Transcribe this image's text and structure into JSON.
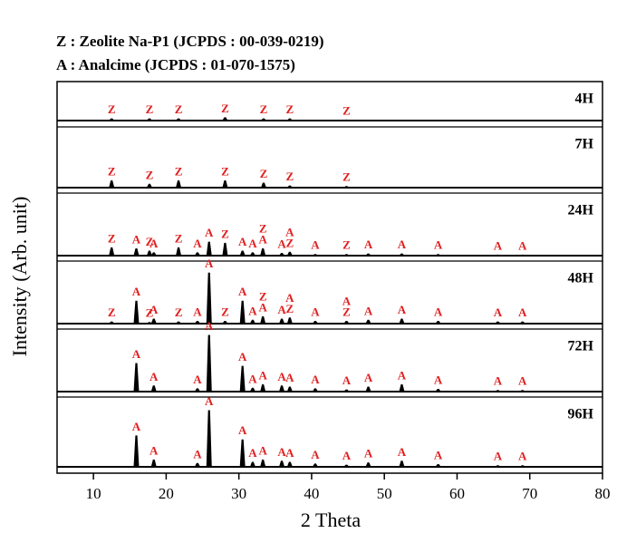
{
  "chart_data": {
    "type": "xrd-stack",
    "notes": [
      "Z : Zeolite Na-P1 (JCPDS : 00-039-0219)",
      "A : Analcime (JCPDS : 01-070-1575)"
    ],
    "x_label": "2 Theta",
    "y_label": "Intensity (Arb. unit)",
    "xlim": [
      5,
      80
    ],
    "xticks": [
      10,
      20,
      30,
      40,
      50,
      60,
      70,
      80
    ],
    "series": [
      {
        "name": "4H",
        "x": [
          12.5,
          17.7,
          21.7,
          28.1,
          33.4,
          37.0,
          44.8
        ],
        "values": [
          3,
          3,
          3,
          5,
          3,
          3,
          1
        ],
        "labels": [
          [
            "Z"
          ],
          [
            "Z"
          ],
          [
            "Z"
          ],
          [
            "Z"
          ],
          [
            "Z"
          ],
          [
            "Z"
          ],
          [
            "Z"
          ]
        ]
      },
      {
        "name": "7H",
        "x": [
          12.5,
          17.7,
          21.7,
          28.1,
          33.4,
          37.0,
          44.8
        ],
        "values": [
          12,
          6,
          12,
          12,
          8,
          3,
          2
        ],
        "labels": [
          [
            "Z"
          ],
          [
            "Z"
          ],
          [
            "Z"
          ],
          [
            "Z"
          ],
          [
            "Z"
          ],
          [
            "Z"
          ],
          [
            "Z"
          ]
        ]
      },
      {
        "name": "24H",
        "x": [
          12.5,
          15.9,
          17.7,
          18.3,
          21.7,
          24.3,
          25.9,
          28.1,
          30.5,
          31.9,
          33.3,
          35.9,
          37.0,
          40.5,
          44.8,
          47.8,
          52.4,
          57.4,
          65.6,
          69.0
        ],
        "values": [
          14,
          12,
          8,
          5,
          14,
          5,
          24,
          22,
          8,
          5,
          12,
          4,
          6,
          2,
          2,
          3,
          3,
          2,
          1,
          1
        ],
        "labels": [
          [
            "Z"
          ],
          [
            "A"
          ],
          [
            "Z"
          ],
          [
            "A"
          ],
          [
            "Z"
          ],
          [
            "A"
          ],
          [
            "A"
          ],
          [
            "Z"
          ],
          [
            "A"
          ],
          [
            "A"
          ],
          [
            "Z",
            "A"
          ],
          [
            "A"
          ],
          [
            "A",
            "Z"
          ],
          [
            "A"
          ],
          [
            "Z"
          ],
          [
            "A"
          ],
          [
            "A"
          ],
          [
            "A"
          ],
          [
            "A"
          ],
          [
            "A"
          ]
        ]
      },
      {
        "name": "48H",
        "x": [
          12.5,
          15.9,
          17.7,
          18.3,
          21.7,
          24.3,
          25.9,
          28.1,
          30.5,
          31.9,
          33.3,
          35.9,
          37.0,
          40.5,
          44.8,
          47.8,
          52.4,
          57.4,
          65.6,
          69.0
        ],
        "values": [
          3,
          40,
          2,
          8,
          3,
          4,
          90,
          4,
          40,
          6,
          12,
          8,
          10,
          4,
          4,
          6,
          8,
          4,
          3,
          3
        ],
        "labels": [
          [
            "Z"
          ],
          [
            "A"
          ],
          [
            "Z"
          ],
          [
            "A"
          ],
          [
            "Z"
          ],
          [
            "A"
          ],
          [
            "A"
          ],
          [
            "Z"
          ],
          [
            "A"
          ],
          [
            "A"
          ],
          [
            "Z",
            "A"
          ],
          [
            "A"
          ],
          [
            "A",
            "Z"
          ],
          [
            "A"
          ],
          [
            "A",
            "Z"
          ],
          [
            "A"
          ],
          [
            "A"
          ],
          [
            "A"
          ],
          [
            "A"
          ],
          [
            "A"
          ]
        ]
      },
      {
        "name": "72H",
        "x": [
          15.9,
          18.3,
          24.3,
          25.9,
          30.5,
          31.9,
          33.3,
          35.9,
          37.0,
          40.5,
          44.8,
          47.8,
          52.4,
          57.4,
          65.6,
          69.0
        ],
        "values": [
          50,
          10,
          5,
          100,
          45,
          6,
          12,
          10,
          8,
          5,
          3,
          8,
          12,
          4,
          2,
          2
        ],
        "labels": [
          [
            "A"
          ],
          [
            "A"
          ],
          [
            "A"
          ],
          [
            "A"
          ],
          [
            "A"
          ],
          [
            "A"
          ],
          [
            "A"
          ],
          [
            "A"
          ],
          [
            "A"
          ],
          [
            "A"
          ],
          [
            "A"
          ],
          [
            "A"
          ],
          [
            "A"
          ],
          [
            "A"
          ],
          [
            "A"
          ],
          [
            "A"
          ]
        ]
      },
      {
        "name": "96H",
        "x": [
          15.9,
          18.3,
          24.3,
          25.9,
          30.5,
          31.9,
          33.3,
          35.9,
          37.0,
          40.5,
          44.8,
          47.8,
          52.4,
          57.4,
          65.6,
          69.0
        ],
        "values": [
          55,
          12,
          6,
          100,
          48,
          8,
          12,
          10,
          8,
          5,
          3,
          7,
          10,
          4,
          2,
          2
        ],
        "labels": [
          [
            "A"
          ],
          [
            "A"
          ],
          [
            "A"
          ],
          [
            "A"
          ],
          [
            "A"
          ],
          [
            "A"
          ],
          [
            "A"
          ],
          [
            "A"
          ],
          [
            "A"
          ],
          [
            "A"
          ],
          [
            "A"
          ],
          [
            "A"
          ],
          [
            "A"
          ],
          [
            "A"
          ],
          [
            "A"
          ],
          [
            "A"
          ]
        ]
      }
    ]
  }
}
